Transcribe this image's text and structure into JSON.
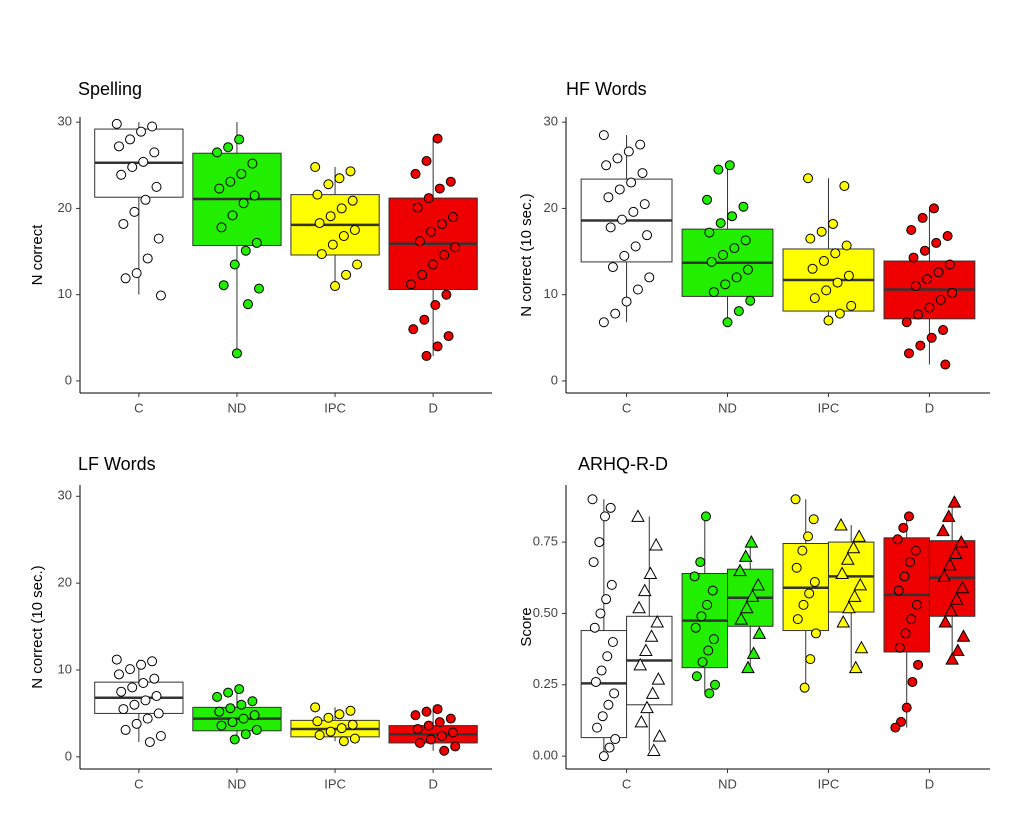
{
  "chart_data": [
    {
      "type": "box",
      "title": "Spelling",
      "ylabel": "N correct",
      "categories": [
        "C",
        "ND",
        "IPC",
        "D"
      ],
      "colors": [
        "#ffffff",
        "#22ee00",
        "#ffff00",
        "#ee0000"
      ],
      "ylim": [
        -1.4,
        30.6
      ],
      "yticks": [
        0,
        10,
        20,
        30
      ],
      "series": [
        {
          "marker": "circle",
          "boxes": [
            {
              "low": 10,
              "q1": 21.3,
              "median": 25.3,
              "q3": 29.2,
              "high": 30,
              "points": [
                29.8,
                29.5,
                28.9,
                28,
                27.2,
                26.5,
                25.4,
                24.8,
                23.9,
                22.5,
                21,
                19.6,
                18.2,
                16.5,
                14.2,
                12.5,
                11.9,
                9.9
              ]
            },
            {
              "low": 3.2,
              "q1": 15.7,
              "median": 21.1,
              "q3": 26.4,
              "high": 30,
              "points": [
                28,
                27.1,
                26.5,
                25.2,
                24,
                23.1,
                22.3,
                21.5,
                20.6,
                19.2,
                17.8,
                16,
                15.1,
                13.5,
                11.1,
                10.7,
                8.9,
                3.2
              ]
            },
            {
              "low": 11,
              "q1": 14.6,
              "median": 18.1,
              "q3": 21.6,
              "high": 24.8,
              "points": [
                24.8,
                24.3,
                23.5,
                22.8,
                21.6,
                20.9,
                20,
                19.1,
                18.3,
                17.5,
                16.8,
                15.8,
                14.7,
                13.5,
                12.3,
                11
              ]
            },
            {
              "low": 2.9,
              "q1": 10.6,
              "median": 15.9,
              "q3": 21.2,
              "high": 28.1,
              "points": [
                28.1,
                25.5,
                24,
                23.1,
                22.3,
                21.2,
                20.1,
                19,
                18.2,
                17.3,
                16.2,
                15.5,
                14.6,
                13.5,
                12.3,
                11.2,
                10,
                8.8,
                7.1,
                6,
                5.2,
                4,
                2.9
              ]
            }
          ]
        }
      ]
    },
    {
      "type": "box",
      "title": "HF Words",
      "ylabel": "N correct (10 sec.)",
      "categories": [
        "C",
        "ND",
        "IPC",
        "D"
      ],
      "colors": [
        "#ffffff",
        "#22ee00",
        "#ffff00",
        "#ee0000"
      ],
      "ylim": [
        -1.4,
        30.6
      ],
      "yticks": [
        0,
        10,
        20,
        30
      ],
      "series": [
        {
          "marker": "circle",
          "boxes": [
            {
              "low": 6.8,
              "q1": 13.8,
              "median": 18.6,
              "q3": 23.4,
              "high": 28.5,
              "points": [
                28.5,
                27.4,
                26.6,
                25.8,
                25,
                24.1,
                23,
                22.2,
                21.3,
                20.5,
                19.6,
                18.7,
                17.8,
                16.9,
                15.6,
                14.5,
                13.2,
                12,
                10.6,
                9.2,
                7.8,
                6.8
              ]
            },
            {
              "low": 6.8,
              "q1": 9.8,
              "median": 13.7,
              "q3": 17.6,
              "high": 25,
              "points": [
                25,
                24.5,
                21,
                20.2,
                19.1,
                18.3,
                17.2,
                16.3,
                15.4,
                14.6,
                13.8,
                12.9,
                12,
                11.2,
                10.3,
                9.3,
                8.1,
                6.8
              ]
            },
            {
              "low": 7,
              "q1": 8.1,
              "median": 11.7,
              "q3": 15.3,
              "high": 23.5,
              "points": [
                23.5,
                22.6,
                18.2,
                17.3,
                16.5,
                15.7,
                14.8,
                13.9,
                13,
                12.2,
                11.4,
                10.5,
                9.6,
                8.7,
                7.8,
                7
              ]
            },
            {
              "low": 1.9,
              "q1": 7.2,
              "median": 10.6,
              "q3": 13.9,
              "high": 20,
              "points": [
                20,
                18.9,
                17.5,
                16.8,
                16,
                15.1,
                14.3,
                13.5,
                12.6,
                11.8,
                11,
                10.2,
                9.4,
                8.5,
                7.7,
                6.8,
                5.9,
                5,
                4.1,
                3.2,
                1.9
              ]
            }
          ]
        }
      ]
    },
    {
      "type": "box",
      "title": "LF Words",
      "ylabel": "N correct (10 sec.)",
      "categories": [
        "C",
        "ND",
        "IPC",
        "D"
      ],
      "colors": [
        "#ffffff",
        "#22ee00",
        "#ffff00",
        "#ee0000"
      ],
      "ylim": [
        -1.4,
        31.3
      ],
      "yticks": [
        0,
        10,
        20,
        30
      ],
      "series": [
        {
          "marker": "circle",
          "boxes": [
            {
              "low": 1.7,
              "q1": 5,
              "median": 6.8,
              "q3": 8.6,
              "high": 11.2,
              "points": [
                11.2,
                11,
                10.6,
                10.1,
                9.5,
                9,
                8.5,
                8,
                7.5,
                7,
                6.5,
                6,
                5.5,
                5,
                4.4,
                3.8,
                3.1,
                2.4,
                1.7
              ]
            },
            {
              "low": 2,
              "q1": 3,
              "median": 4.4,
              "q3": 5.7,
              "high": 7.8,
              "points": [
                7.8,
                7.4,
                6.9,
                6.4,
                6,
                5.6,
                5.2,
                4.8,
                4.4,
                4,
                3.6,
                3.1,
                2.6,
                2
              ]
            },
            {
              "low": 1.8,
              "q1": 2.3,
              "median": 3.2,
              "q3": 4.2,
              "high": 5.7,
              "points": [
                5.7,
                5.3,
                4.9,
                4.5,
                4.1,
                3.7,
                3.3,
                2.9,
                2.5,
                2.1,
                1.8
              ]
            },
            {
              "low": 0.7,
              "q1": 1.6,
              "median": 2.6,
              "q3": 3.6,
              "high": 5.5,
              "points": [
                5.5,
                5.2,
                4.8,
                4.4,
                4,
                3.6,
                3.2,
                2.8,
                2.4,
                2,
                1.6,
                1.2,
                0.7
              ]
            }
          ]
        }
      ]
    },
    {
      "type": "box",
      "title": "ARHQ-R-D",
      "ylabel": "Score",
      "categories": [
        "C",
        "ND",
        "IPC",
        "D"
      ],
      "colors": [
        "#ffffff",
        "#22ee00",
        "#ffff00",
        "#ee0000"
      ],
      "ylim": [
        -0.045,
        0.95
      ],
      "yticks": [
        {
          "value": 0,
          "label": "0.00"
        },
        {
          "value": 0.25,
          "label": "0.25"
        },
        {
          "value": 0.5,
          "label": "0.50"
        },
        {
          "value": 0.75,
          "label": "0.75"
        }
      ],
      "series": [
        {
          "marker": "circle",
          "boxes": [
            {
              "low": 0,
              "q1": 0.065,
              "median": 0.255,
              "q3": 0.44,
              "high": 0.9,
              "points": [
                0.9,
                0.87,
                0.84,
                0.75,
                0.68,
                0.6,
                0.55,
                0.5,
                0.45,
                0.4,
                0.35,
                0.3,
                0.26,
                0.22,
                0.18,
                0.14,
                0.1,
                0.06,
                0.03,
                0
              ]
            },
            {
              "low": 0.22,
              "q1": 0.31,
              "median": 0.475,
              "q3": 0.64,
              "high": 0.84,
              "points": [
                0.84,
                0.68,
                0.63,
                0.58,
                0.53,
                0.49,
                0.45,
                0.41,
                0.37,
                0.33,
                0.28,
                0.25,
                0.22
              ]
            },
            {
              "low": 0.24,
              "q1": 0.44,
              "median": 0.59,
              "q3": 0.745,
              "high": 0.9,
              "points": [
                0.9,
                0.83,
                0.77,
                0.72,
                0.66,
                0.61,
                0.57,
                0.53,
                0.48,
                0.43,
                0.34,
                0.24
              ]
            },
            {
              "low": 0.1,
              "q1": 0.365,
              "median": 0.565,
              "q3": 0.765,
              "high": 0.84,
              "points": [
                0.84,
                0.8,
                0.76,
                0.72,
                0.68,
                0.63,
                0.58,
                0.53,
                0.48,
                0.43,
                0.38,
                0.32,
                0.26,
                0.17,
                0.12,
                0.1
              ]
            }
          ]
        },
        {
          "marker": "triangle",
          "boxes": [
            {
              "low": 0.02,
              "q1": 0.18,
              "median": 0.335,
              "q3": 0.49,
              "high": 0.84,
              "points": [
                0.84,
                0.74,
                0.64,
                0.58,
                0.52,
                0.47,
                0.42,
                0.37,
                0.32,
                0.27,
                0.22,
                0.17,
                0.12,
                0.07,
                0.02
              ]
            },
            {
              "low": 0.31,
              "q1": 0.455,
              "median": 0.555,
              "q3": 0.655,
              "high": 0.75,
              "points": [
                0.75,
                0.7,
                0.65,
                0.6,
                0.56,
                0.52,
                0.48,
                0.43,
                0.36,
                0.31
              ]
            },
            {
              "low": 0.31,
              "q1": 0.505,
              "median": 0.63,
              "q3": 0.75,
              "high": 0.81,
              "points": [
                0.81,
                0.77,
                0.73,
                0.69,
                0.64,
                0.6,
                0.56,
                0.52,
                0.47,
                0.38,
                0.31
              ]
            },
            {
              "low": 0.34,
              "q1": 0.49,
              "median": 0.625,
              "q3": 0.755,
              "high": 0.89,
              "points": [
                0.89,
                0.84,
                0.79,
                0.75,
                0.71,
                0.67,
                0.63,
                0.59,
                0.55,
                0.51,
                0.47,
                0.42,
                0.37,
                0.34
              ]
            }
          ]
        }
      ]
    }
  ]
}
